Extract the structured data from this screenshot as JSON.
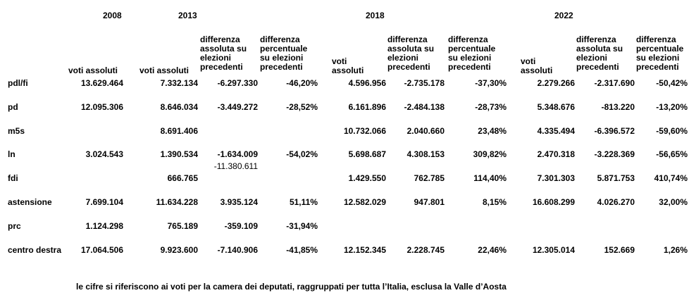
{
  "years": {
    "y2008": "2008",
    "y2013": "2013",
    "y2018": "2018",
    "y2022": "2022"
  },
  "headers": {
    "va2008": "voti assoluti",
    "va2013": "voti assoluti",
    "da2013": "differenza\nassoluta su\nelezioni\nprecedenti",
    "dp2013": "differenza\npercentuale\nsu elezioni\nprecedenti",
    "va2018": "voti\nassoluti",
    "da2018": "differenza\nassoluta su\nelezioni\nprecedenti",
    "dp2018": "differenza\npercentuale\nsu elezioni\nprecedenti",
    "va2022": "voti\nassoluti",
    "da2022": "differenza\nassoluta su\nelezioni\nprecedenti",
    "dp2022": "differenza\npercentuale\nsu elezioni\nprecedenti"
  },
  "rows": [
    {
      "label": "pdl/fi",
      "cells": [
        "13.629.464",
        "7.332.134",
        "-6.297.330",
        "-46,20%",
        "4.596.956",
        "-2.735.178",
        "-37,30%",
        "2.279.266",
        "-2.317.690",
        "-50,42%"
      ]
    },
    {
      "label": "pd",
      "cells": [
        "12.095.306",
        "8.646.034",
        "-3.449.272",
        "-28,52%",
        "6.161.896",
        "-2.484.138",
        "-28,73%",
        "5.348.676",
        "-813.220",
        "-13,20%"
      ]
    },
    {
      "label": "m5s",
      "cells": [
        "",
        "8.691.406",
        "",
        "",
        "10.732.066",
        "2.040.660",
        "23,48%",
        "4.335.494",
        "-6.396.572",
        "-59,60%"
      ]
    },
    {
      "label": "ln",
      "cells": [
        "3.024.543",
        "1.390.534",
        "-1.634.009",
        "-54,02%",
        "5.698.687",
        "4.308.153",
        "309,82%",
        "2.470.318",
        "-3.228.369",
        "-56,65%"
      ]
    },
    {
      "label": "fdi",
      "cells": [
        "",
        "666.765",
        "",
        "",
        "1.429.550",
        "762.785",
        "114,40%",
        "7.301.303",
        "5.871.753",
        "410,74%"
      ]
    },
    {
      "label": "astensione",
      "cells": [
        "7.699.104",
        "11.634.228",
        "3.935.124",
        "51,11%",
        "12.582.029",
        "947.801",
        "8,15%",
        "16.608.299",
        "4.026.270",
        "32,00%"
      ]
    },
    {
      "label": "prc",
      "cells": [
        "1.124.298",
        "765.189",
        "-359.109",
        "-31,94%",
        "",
        "",
        "",
        "",
        "",
        ""
      ]
    },
    {
      "label": "centro destra",
      "cells": [
        "17.064.506",
        "9.923.600",
        "-7.140.906",
        "-41,85%",
        "12.152.345",
        "2.228.745",
        "22,46%",
        "12.305.014",
        "152.669",
        "1,26%"
      ]
    }
  ],
  "extra": {
    "fdi_diff2013": "-11.380.611"
  },
  "note": "le cifre si riferiscono ai voti per la camera dei deputati, raggruppati per tutta l’Italia, esclusa la Valle d’Aosta"
}
